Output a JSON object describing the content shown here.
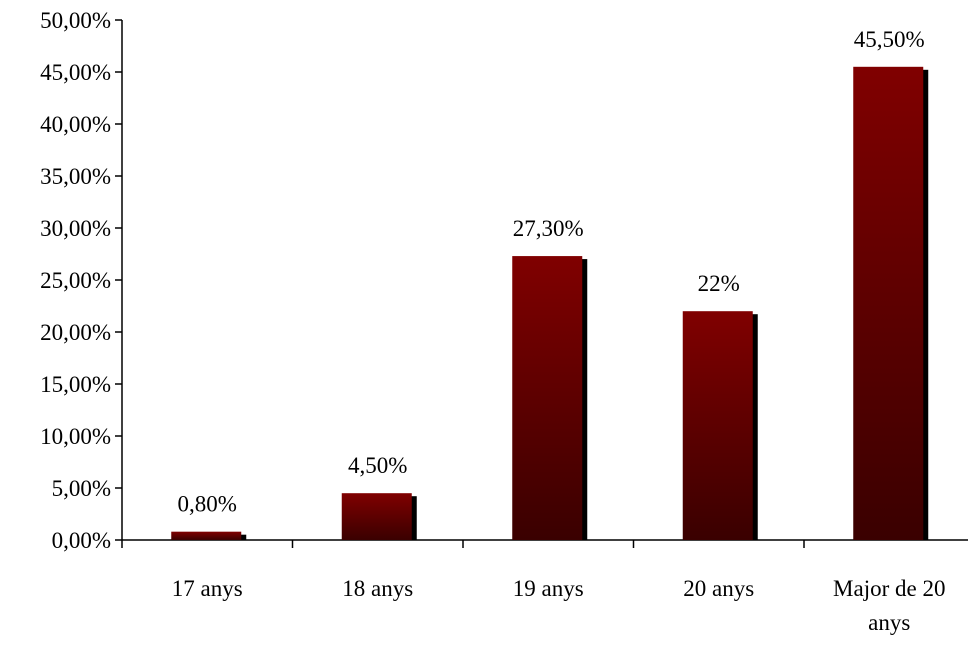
{
  "chart_data": {
    "type": "bar",
    "categories": [
      [
        "17 anys"
      ],
      [
        "18 anys"
      ],
      [
        "19 anys"
      ],
      [
        "20 anys"
      ],
      [
        "Major de 20",
        "anys"
      ]
    ],
    "values": [
      0.8,
      4.5,
      27.3,
      22.0,
      45.5
    ],
    "data_labels": [
      "0,80%",
      "4,50%",
      "27,30%",
      "22%",
      "45,50%"
    ],
    "y_ticks": [
      0,
      5,
      10,
      15,
      20,
      25,
      30,
      35,
      40,
      45,
      50
    ],
    "y_tick_labels": [
      "0,00%",
      "5,00%",
      "10,00%",
      "15,00%",
      "20,00%",
      "25,00%",
      "30,00%",
      "35,00%",
      "40,00%",
      "45,00%",
      "50,00%"
    ],
    "ylim": [
      0,
      50
    ],
    "title": "",
    "xlabel": "",
    "ylabel": "",
    "grid": false,
    "legend": "none",
    "colors": {
      "bar_top": "#800000",
      "bar_bottom": "#3a0000",
      "bar_shadow": "#000000"
    }
  }
}
